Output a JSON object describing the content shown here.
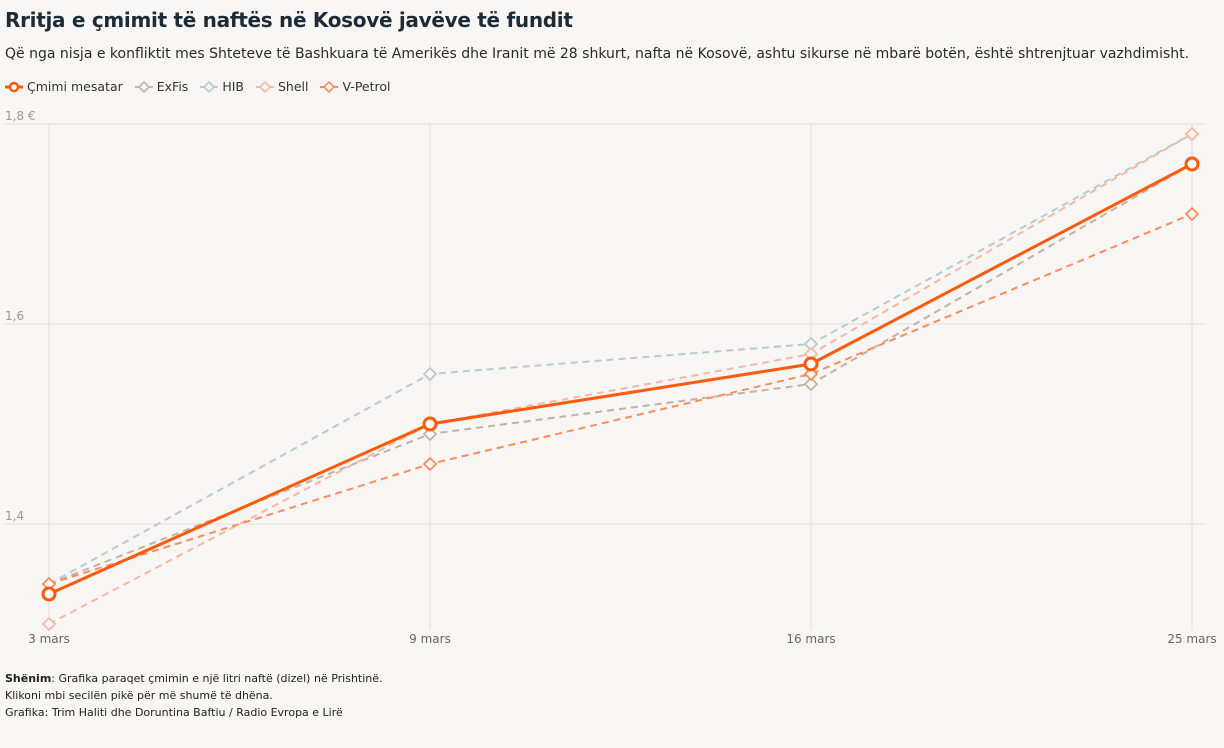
{
  "title": "Rritja e çmimit të naftës në Kosovë javëve të fundit",
  "subtitle": "Që nga nisja e konfliktit mes Shteteve të Bashkuara të Amerikës dhe Iranit më 28 shkurt, nafta në Kosovë, ashtu sikurse në mbarë botën, është shtrenjtuar vazhdimisht.",
  "notes": {
    "label": "Shënim",
    "text": ": Grafika paraqet çmimin e një litri naftë (dizel) në Prishtinë.",
    "click": "Klikoni mbi secilën pikë për më shumë të dhëna.",
    "credit": "Grafika: Trim Haliti dhe Doruntina Baftiu / Radio Evropa e Lirë"
  },
  "chart_data": {
    "type": "line",
    "title": "Rritja e çmimit të naftës në Kosovë javëve të fundit",
    "x": [
      "3 mars",
      "9 mars",
      "16 mars",
      "25 mars"
    ],
    "ylim": [
      1.3,
      1.8
    ],
    "yticks": [
      {
        "v": 1.4,
        "label": "1,4"
      },
      {
        "v": 1.6,
        "label": "1,6"
      },
      {
        "v": 1.8,
        "label": "1,8 €"
      }
    ],
    "legend": "top-left",
    "grid": true,
    "series": [
      {
        "name": "ExFis",
        "color": "#c4b2a3",
        "dashed": true,
        "values": [
          1.34,
          1.49,
          1.54,
          1.76
        ]
      },
      {
        "name": "HIB",
        "color": "#b9cccb",
        "dashed": true,
        "values": [
          1.34,
          1.55,
          1.58,
          1.79
        ]
      },
      {
        "name": "Shell",
        "color": "#f4b9a6",
        "dashed": true,
        "values": [
          1.3,
          1.5,
          1.57,
          1.79
        ]
      },
      {
        "name": "V-Petrol",
        "color": "#fb8c5c",
        "dashed": true,
        "values": [
          1.34,
          1.46,
          1.55,
          1.71
        ]
      },
      {
        "name": "Çmimi mesatar",
        "color": "#ff5a0a",
        "dashed": false,
        "values": [
          1.33,
          1.5,
          1.56,
          1.76
        ]
      }
    ],
    "legend_order": [
      "Çmimi mesatar",
      "ExFis",
      "HIB",
      "Shell",
      "V-Petrol"
    ]
  }
}
